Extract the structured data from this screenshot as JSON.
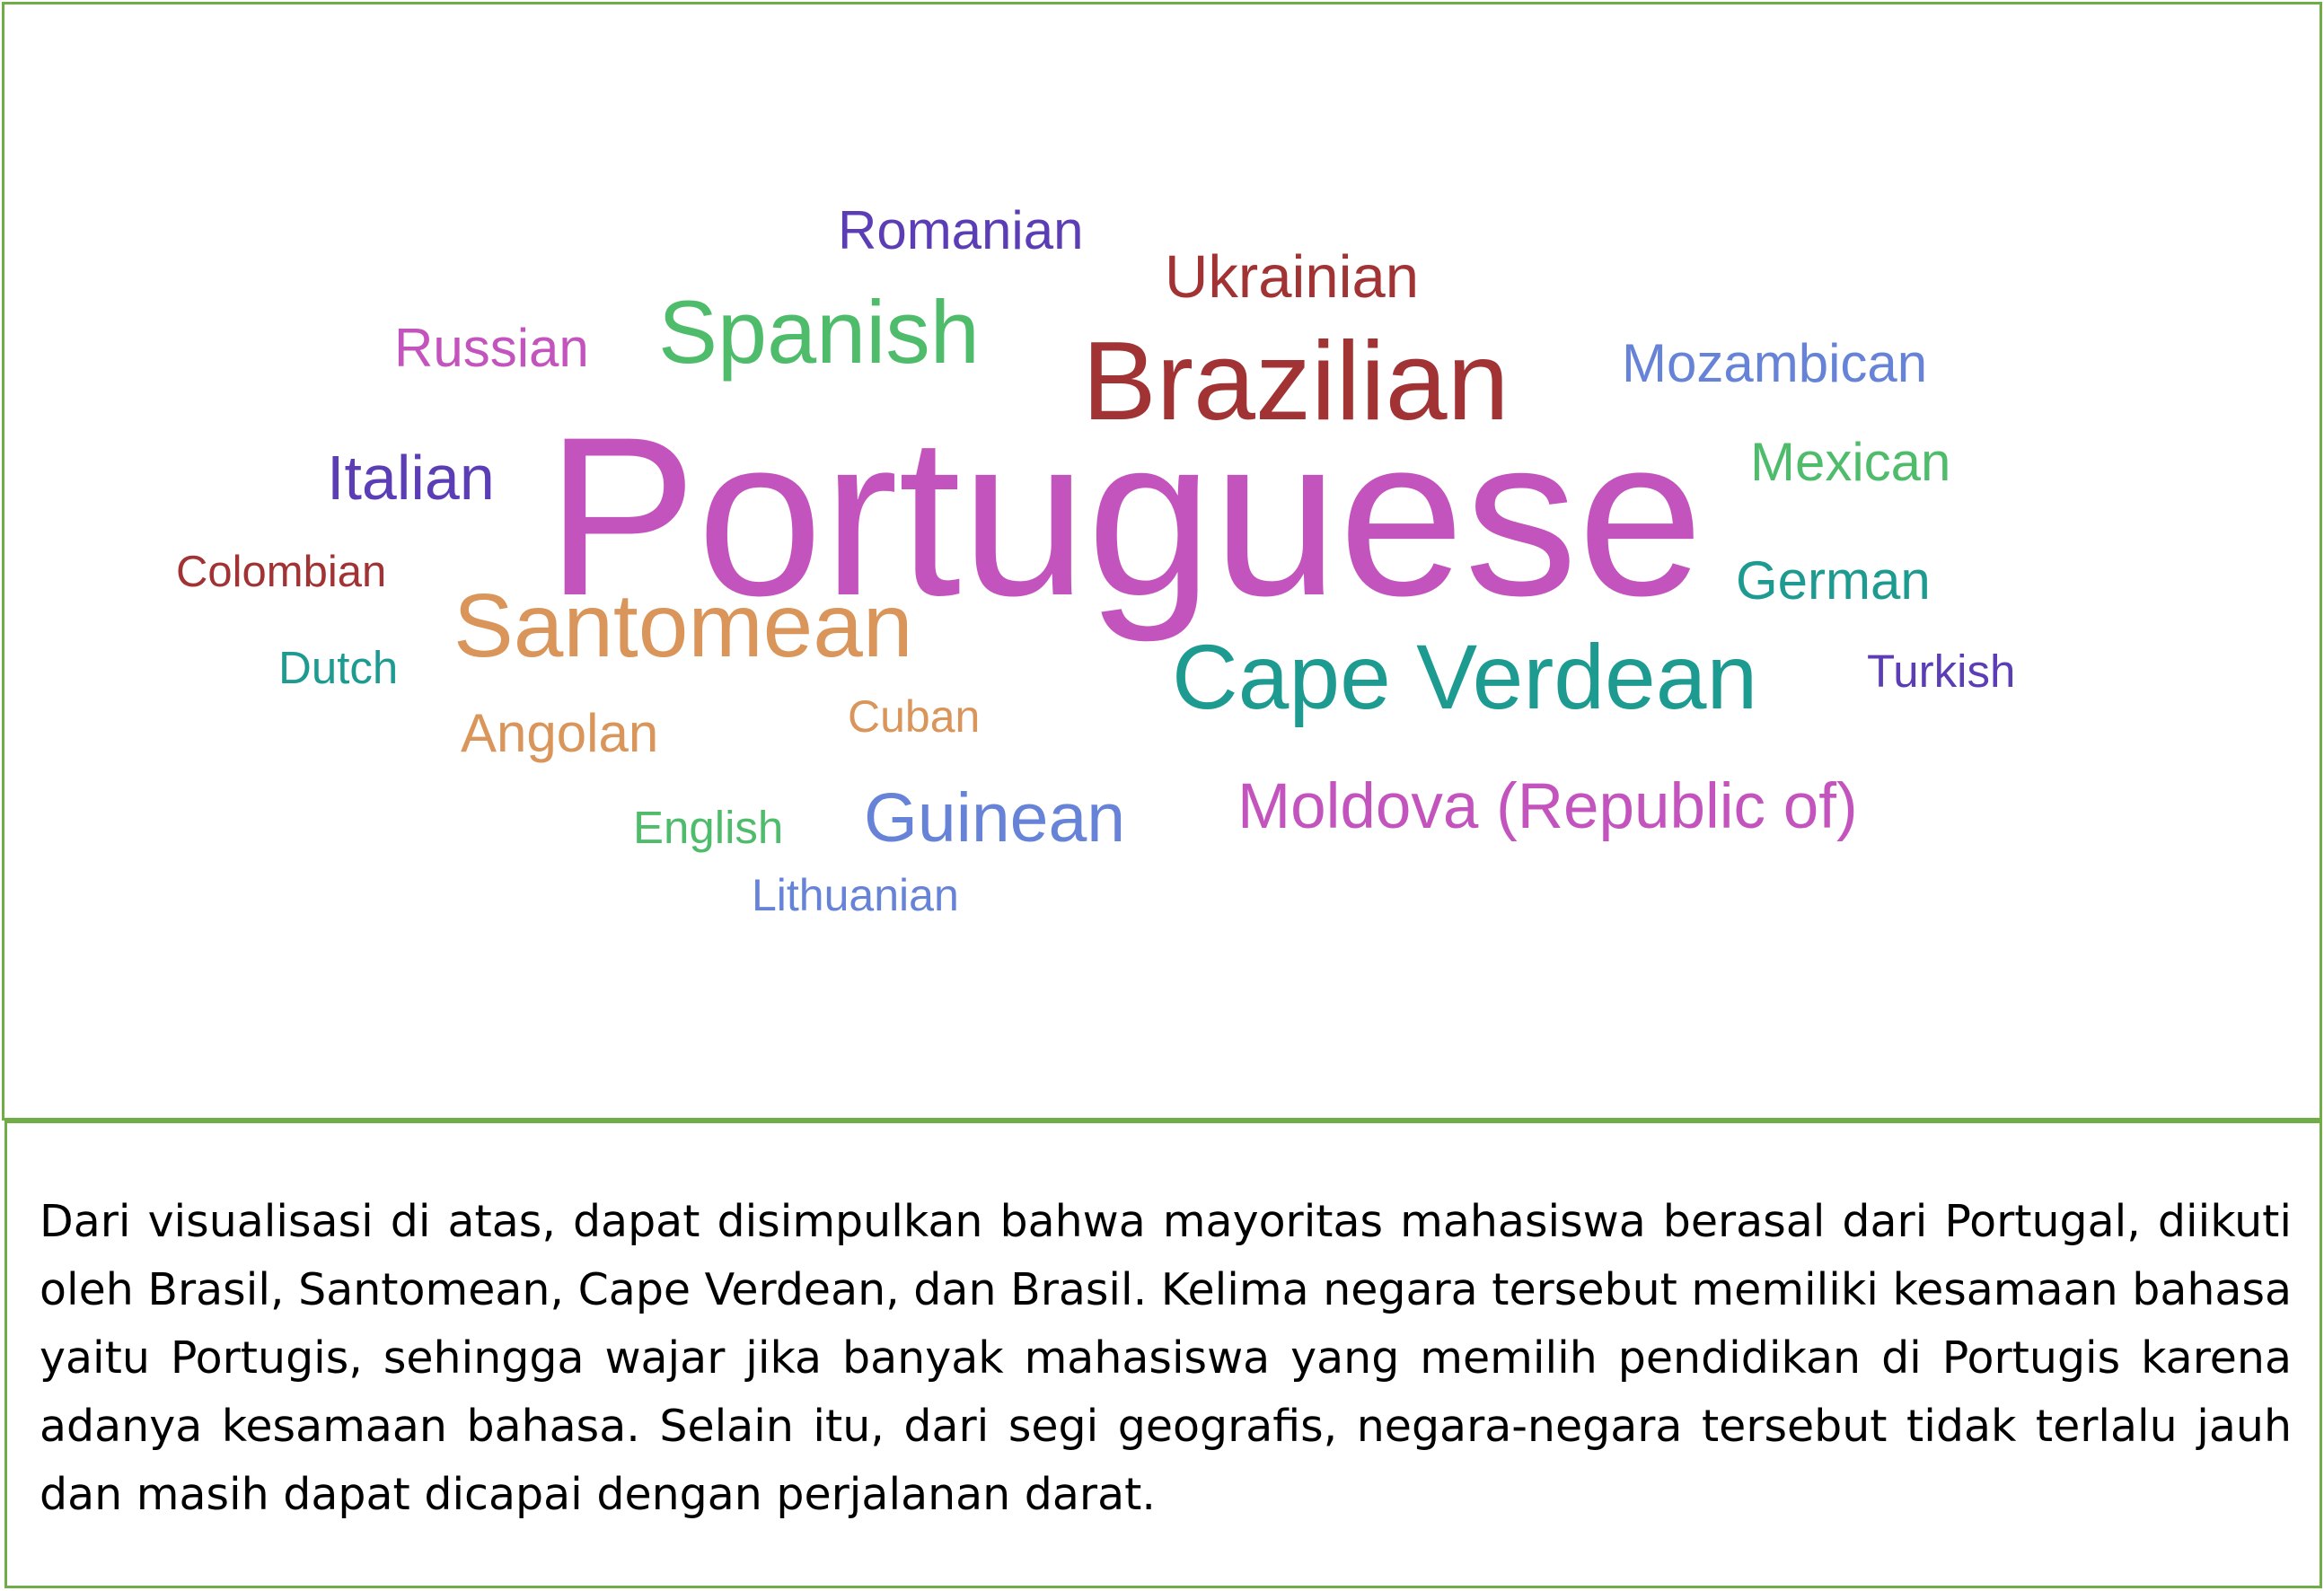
{
  "palette": {
    "border": "#70ad47",
    "text": "#000000"
  },
  "word_cloud": [
    {
      "text": "Portuguese",
      "color": "#c454bd"
    },
    {
      "text": "Brazilian",
      "color": "#a13335"
    },
    {
      "text": "Cape Verdean",
      "color": "#1e9b90"
    },
    {
      "text": "Santomean",
      "color": "#d9955a"
    },
    {
      "text": "Spanish",
      "color": "#4fbc6b"
    },
    {
      "text": "Moldova (Republic of)",
      "color": "#c454bd"
    },
    {
      "text": "Guinean",
      "color": "#6683d8"
    },
    {
      "text": "Ukrainian",
      "color": "#a13335"
    },
    {
      "text": "Romanian",
      "color": "#5b3eb5"
    },
    {
      "text": "Italian",
      "color": "#5b3eb5"
    },
    {
      "text": "Mozambican",
      "color": "#6683d8"
    },
    {
      "text": "Mexican",
      "color": "#4fbc6b"
    },
    {
      "text": "German",
      "color": "#1e9b90"
    },
    {
      "text": "Russian",
      "color": "#c454bd"
    },
    {
      "text": "Angolan",
      "color": "#d9955a"
    },
    {
      "text": "Colombian",
      "color": "#a13335"
    },
    {
      "text": "Dutch",
      "color": "#1e9b90"
    },
    {
      "text": "Turkish",
      "color": "#5b3eb5"
    },
    {
      "text": "Cuban",
      "color": "#d9955a"
    },
    {
      "text": "English",
      "color": "#4fbc6b"
    },
    {
      "text": "Lithuanian",
      "color": "#6683d8"
    }
  ],
  "caption": "Dari visualisasi di atas, dapat disimpulkan bahwa mayoritas mahasiswa berasal dari Portugal, diikuti oleh Brasil, Santomean, Cape Verdean, dan Brasil. Kelima negara tersebut memiliki kesamaan bahasa yaitu Portugis, sehingga wajar jika banyak mahasiswa yang memilih pendidikan di Portugis karena adanya kesamaan bahasa. Selain itu, dari segi geografis, negara-negara tersebut tidak terlalu jauh dan masih dapat dicapai dengan perjalanan darat."
}
